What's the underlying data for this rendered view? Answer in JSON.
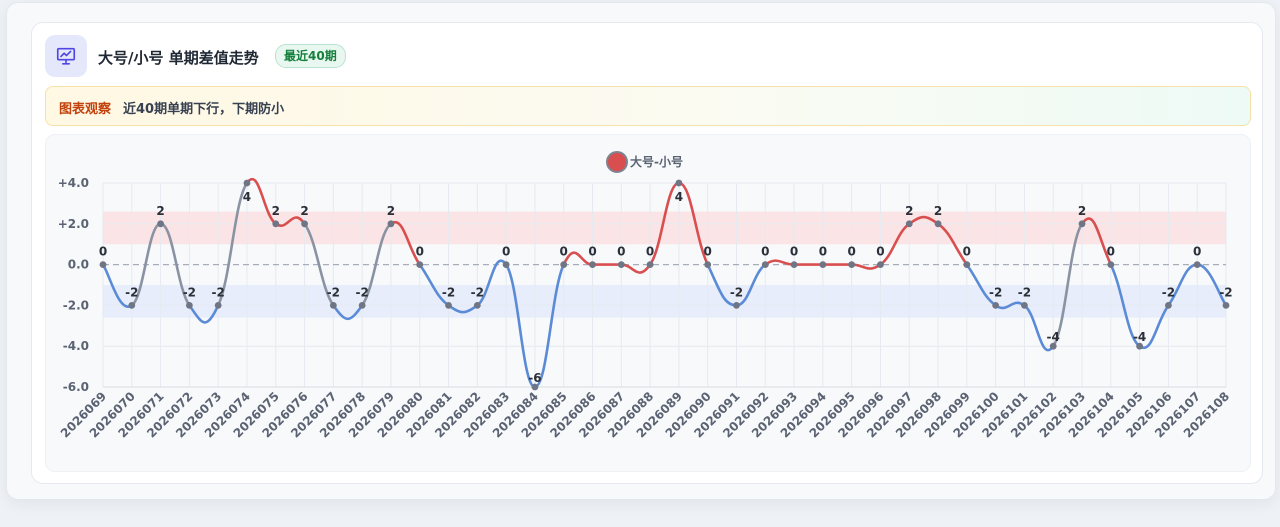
{
  "header": {
    "title": "大号/小号 单期差值走势",
    "badge": "最近40期",
    "icon": "presentation-chart-icon"
  },
  "note": {
    "label": "图表观察",
    "text": "近40期单期下行，下期防小"
  },
  "colors": {
    "up": "#d94f4f",
    "down": "#5b8bd6",
    "flat": "#8a93a3",
    "upper_band": "#fbe1e3",
    "lower_band": "#e4ebfb"
  },
  "chart_data": {
    "type": "line",
    "title": "",
    "xlabel": "",
    "ylabel": "",
    "legend": {
      "position": "top-center"
    },
    "grid": true,
    "ylim": [
      -6,
      4
    ],
    "yticks": [
      4,
      2,
      0,
      -2,
      -4,
      -6
    ],
    "ytick_labels": [
      "+4.0",
      "+2.0",
      "0.0",
      "-2.0",
      "-4.0",
      "-6.0"
    ],
    "bands": [
      {
        "from": 1,
        "to": 2.6
      },
      {
        "from": -2.6,
        "to": -1
      }
    ],
    "categories": [
      "2026069",
      "2026070",
      "2026071",
      "2026072",
      "2026073",
      "2026074",
      "2026075",
      "2026076",
      "2026077",
      "2026078",
      "2026079",
      "2026080",
      "2026081",
      "2026082",
      "2026083",
      "2026084",
      "2026085",
      "2026086",
      "2026087",
      "2026088",
      "2026089",
      "2026090",
      "2026091",
      "2026092",
      "2026093",
      "2026094",
      "2026095",
      "2026096",
      "2026097",
      "2026098",
      "2026099",
      "2026100",
      "2026101",
      "2026102",
      "2026103",
      "2026104",
      "2026105",
      "2026106",
      "2026107",
      "2026108"
    ],
    "series": [
      {
        "name": "大号-小号",
        "values": [
          0,
          -2,
          2,
          -2,
          -2,
          4,
          2,
          2,
          -2,
          -2,
          2,
          0,
          -2,
          -2,
          0,
          -6,
          0,
          0,
          0,
          0,
          4,
          0,
          -2,
          0,
          0,
          0,
          0,
          0,
          2,
          2,
          0,
          -2,
          -2,
          -4,
          2,
          0,
          -4,
          -2,
          0,
          -2
        ],
        "labels": [
          "0",
          "-2",
          "2",
          "-2",
          "-2",
          "4",
          "2",
          "2",
          "-2",
          "-2",
          "2",
          "0",
          "-2",
          "-2",
          "0",
          "-6",
          "0",
          "0",
          "0",
          "0",
          "4",
          "0",
          "-2",
          "0",
          "0",
          "0",
          "0",
          "0",
          "2",
          "2",
          "0",
          "-2",
          "-2",
          "-4",
          "2",
          "0",
          "-4",
          "-2",
          "0",
          "-2"
        ]
      }
    ]
  }
}
